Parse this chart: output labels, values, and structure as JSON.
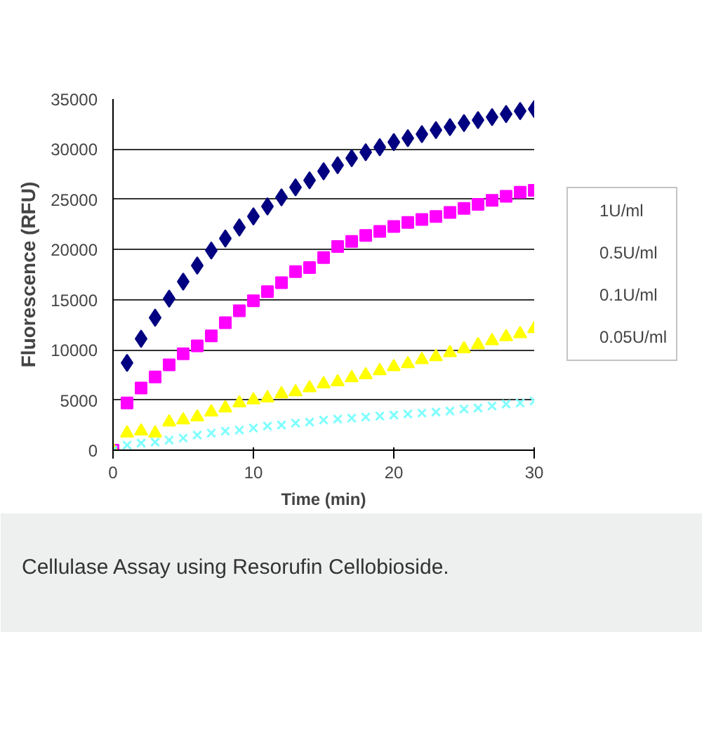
{
  "chart_data": {
    "type": "scatter",
    "xlabel": "Time (min)",
    "ylabel": "Fluorescence (RFU)",
    "x": [
      0,
      1,
      2,
      3,
      4,
      5,
      6,
      7,
      8,
      9,
      10,
      11,
      12,
      13,
      14,
      15,
      16,
      17,
      18,
      19,
      20,
      21,
      22,
      23,
      24,
      25,
      26,
      27,
      28,
      29,
      30
    ],
    "series": [
      {
        "name": "1U/ml",
        "color": "#000080",
        "marker": "diamond",
        "values": [
          null,
          8700,
          11100,
          13200,
          15100,
          16800,
          18400,
          19900,
          21100,
          22200,
          23300,
          24300,
          25200,
          26200,
          26900,
          27800,
          28400,
          29100,
          29700,
          30200,
          30700,
          31100,
          31500,
          31900,
          32200,
          32600,
          32900,
          33200,
          33500,
          33800,
          34000
        ]
      },
      {
        "name": "0.5U/ml",
        "color": "#ff00ff",
        "marker": "square",
        "values": [
          0,
          4700,
          6200,
          7300,
          8500,
          9600,
          10400,
          11400,
          12700,
          13900,
          14900,
          15800,
          16700,
          17800,
          18200,
          19200,
          20300,
          20800,
          21400,
          21800,
          22300,
          22700,
          23000,
          23300,
          23700,
          24100,
          24500,
          24900,
          25300,
          25700,
          25900
        ]
      },
      {
        "name": "0.1U/ml",
        "color": "#ffff00",
        "marker": "triangle",
        "values": [
          0,
          1700,
          1900,
          1700,
          2800,
          3000,
          3300,
          3800,
          4200,
          4700,
          5000,
          5200,
          5600,
          5800,
          6200,
          6600,
          6800,
          7200,
          7500,
          7900,
          8300,
          8600,
          9000,
          9300,
          9700,
          10100,
          10500,
          10900,
          11300,
          11600,
          12100
        ]
      },
      {
        "name": "0.05U/ml",
        "color": "#80ffff",
        "marker": "cross",
        "values": [
          0,
          500,
          700,
          800,
          1000,
          1200,
          1500,
          1700,
          1900,
          2000,
          2200,
          2400,
          2500,
          2700,
          2800,
          3000,
          3100,
          3200,
          3300,
          3400,
          3500,
          3600,
          3700,
          3800,
          3900,
          4100,
          4200,
          4400,
          4600,
          4700,
          4900
        ]
      }
    ],
    "xlim": [
      0,
      30
    ],
    "xticks": [
      0,
      10,
      20,
      30
    ],
    "ylim": [
      0,
      35000
    ],
    "yticks": [
      0,
      5000,
      10000,
      15000,
      20000,
      25000,
      30000,
      35000
    ],
    "grid": "y",
    "legend": "right",
    "annotations": [
      "Cellulase Assay using Resorufin Cellobioside."
    ]
  }
}
